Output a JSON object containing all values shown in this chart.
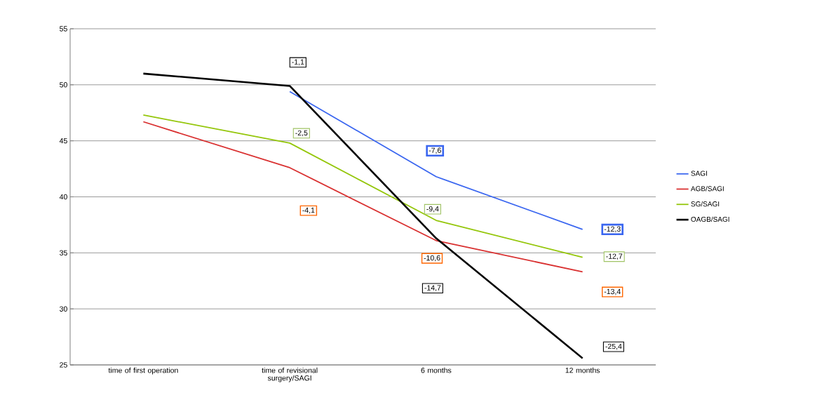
{
  "chart_data": {
    "type": "line",
    "categories": [
      "time of first operation",
      "time of revisional surgery/SAGI",
      "6 months",
      "12 months"
    ],
    "series": [
      {
        "name": "SAGI",
        "color": "#3a66f0",
        "values": [
          null,
          49.4,
          41.8,
          37.1
        ]
      },
      {
        "name": "AGB/SAGI",
        "color": "#d93030",
        "values": [
          46.7,
          42.6,
          36.1,
          33.3
        ]
      },
      {
        "name": "SG/SAGI",
        "color": "#94c60a",
        "values": [
          47.3,
          44.8,
          37.9,
          34.6
        ]
      },
      {
        "name": "OAGB/SAGI",
        "color": "#000000",
        "values": [
          51.0,
          49.9,
          36.3,
          25.6
        ]
      }
    ],
    "annotations": [
      "-7,6",
      "-12,3",
      "-4,1",
      "-10,6",
      "-13,4",
      "-2,5",
      "-9,4",
      "-12,7",
      "-1,1",
      "-14,7",
      "-25,4"
    ],
    "ylim": [
      25,
      55
    ],
    "yticks": [
      25,
      30,
      35,
      40,
      45,
      50,
      55
    ],
    "grid": "y",
    "legend": "right",
    "marker": "none",
    "line_style": "solid"
  }
}
